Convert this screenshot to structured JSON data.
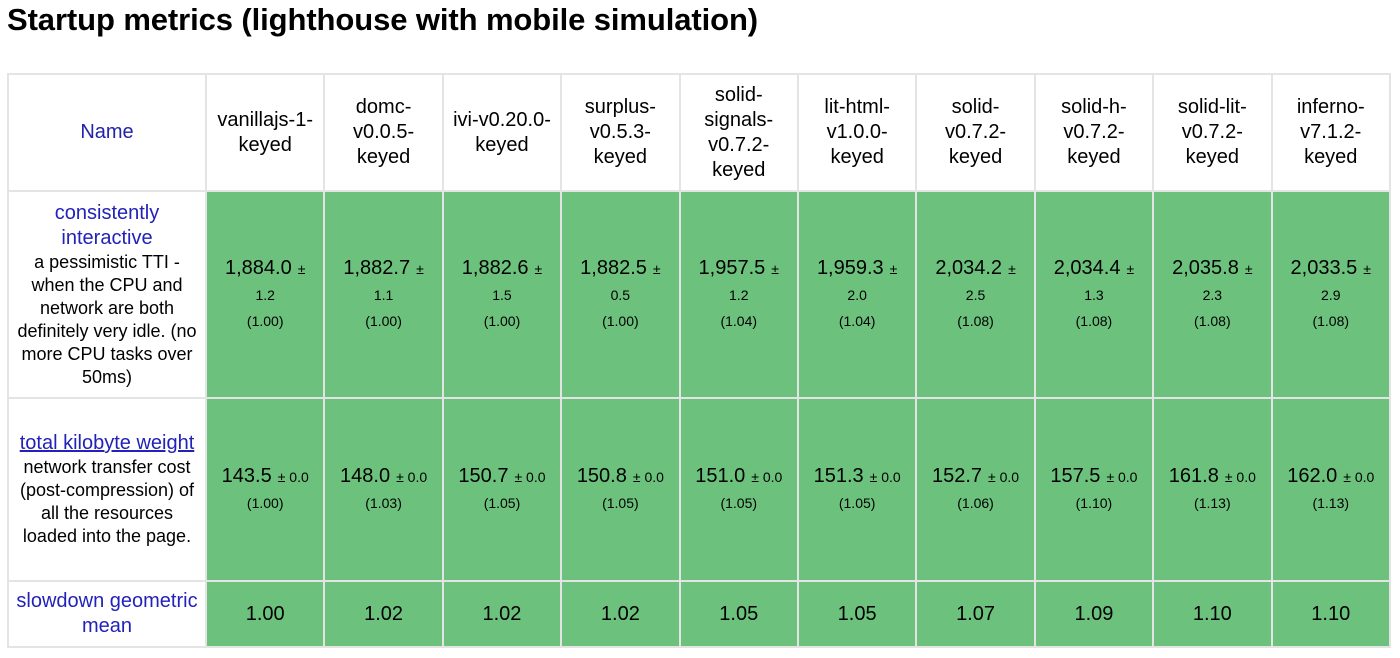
{
  "title": "Startup metrics (lighthouse with mobile simulation)",
  "header": {
    "name_label": "Name",
    "columns": [
      "vanillajs-1-keyed",
      "domc-v0.0.5-keyed",
      "ivi-v0.20.0-keyed",
      "surplus-v0.5.3-keyed",
      "solid-signals-v0.7.2-keyed",
      "lit-html-v1.0.0-keyed",
      "solid-v0.7.2-keyed",
      "solid-h-v0.7.2-keyed",
      "solid-lit-v0.7.2-keyed",
      "inferno-v7.1.2-keyed"
    ]
  },
  "rows": [
    {
      "title": "consistently interactive",
      "description": "a pessimistic TTI - when the CPU and network are both definitely very idle. (no more CPU tasks over 50ms)",
      "cells": [
        {
          "value": "1,884.0",
          "pm": "±",
          "dev": "1.2",
          "ratio": "(1.00)"
        },
        {
          "value": "1,882.7",
          "pm": "±",
          "dev": "1.1",
          "ratio": "(1.00)"
        },
        {
          "value": "1,882.6",
          "pm": "±",
          "dev": "1.5",
          "ratio": "(1.00)"
        },
        {
          "value": "1,882.5",
          "pm": "±",
          "dev": "0.5",
          "ratio": "(1.00)"
        },
        {
          "value": "1,957.5",
          "pm": "±",
          "dev": "1.2",
          "ratio": "(1.04)"
        },
        {
          "value": "1,959.3",
          "pm": "±",
          "dev": "2.0",
          "ratio": "(1.04)"
        },
        {
          "value": "2,034.2",
          "pm": "±",
          "dev": "2.5",
          "ratio": "(1.08)"
        },
        {
          "value": "2,034.4",
          "pm": "±",
          "dev": "1.3",
          "ratio": "(1.08)"
        },
        {
          "value": "2,035.8",
          "pm": "±",
          "dev": "2.3",
          "ratio": "(1.08)"
        },
        {
          "value": "2,033.5",
          "pm": "±",
          "dev": "2.9",
          "ratio": "(1.08)"
        }
      ]
    },
    {
      "title": "total kilobyte weight",
      "description": "network transfer cost (post-compression) of all the resources loaded into the page.",
      "cells": [
        {
          "value": "143.5",
          "pm": "± 0.0",
          "ratio": "(1.00)"
        },
        {
          "value": "148.0",
          "pm": "± 0.0",
          "ratio": "(1.03)"
        },
        {
          "value": "150.7",
          "pm": "± 0.0",
          "ratio": "(1.05)"
        },
        {
          "value": "150.8",
          "pm": "± 0.0",
          "ratio": "(1.05)"
        },
        {
          "value": "151.0",
          "pm": "± 0.0",
          "ratio": "(1.05)"
        },
        {
          "value": "151.3",
          "pm": "± 0.0",
          "ratio": "(1.05)"
        },
        {
          "value": "152.7",
          "pm": "± 0.0",
          "ratio": "(1.06)"
        },
        {
          "value": "157.5",
          "pm": "± 0.0",
          "ratio": "(1.10)"
        },
        {
          "value": "161.8",
          "pm": "± 0.0",
          "ratio": "(1.13)"
        },
        {
          "value": "162.0",
          "pm": "± 0.0",
          "ratio": "(1.13)"
        }
      ]
    },
    {
      "title": "slowdown geometric mean",
      "cells": [
        "1.00",
        "1.02",
        "1.02",
        "1.02",
        "1.05",
        "1.05",
        "1.07",
        "1.09",
        "1.10",
        "1.10"
      ]
    }
  ],
  "colors": {
    "cell_green": "#6cc27c",
    "link_blue": "#2222bb",
    "border": "#e4e4e4"
  }
}
